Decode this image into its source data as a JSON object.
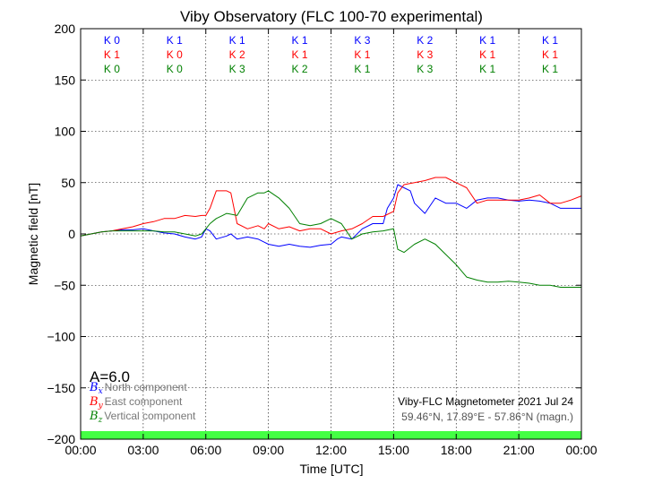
{
  "chart_data": {
    "type": "line",
    "title": "Viby Observatory (FLC 100-70 experimental)",
    "xlabel": "Time [UTC]",
    "ylabel": "Magnetic field [nT]",
    "xlim": [
      0,
      24
    ],
    "ylim": [
      -200,
      200
    ],
    "grid": true,
    "x_ticks": [
      {
        "value": 0,
        "label": "00:00"
      },
      {
        "value": 3,
        "label": "03:00"
      },
      {
        "value": 6,
        "label": "06:00"
      },
      {
        "value": 9,
        "label": "09:00"
      },
      {
        "value": 12,
        "label": "12:00"
      },
      {
        "value": 15,
        "label": "15:00"
      },
      {
        "value": 18,
        "label": "18:00"
      },
      {
        "value": 21,
        "label": "21:00"
      },
      {
        "value": 24,
        "label": "00:00"
      }
    ],
    "y_ticks": [
      {
        "value": -200,
        "label": "−200"
      },
      {
        "value": -150,
        "label": "−150"
      },
      {
        "value": -100,
        "label": "−100"
      },
      {
        "value": -50,
        "label": "−50"
      },
      {
        "value": 0,
        "label": "0"
      },
      {
        "value": 50,
        "label": "50"
      },
      {
        "value": 100,
        "label": "100"
      },
      {
        "value": 150,
        "label": "150"
      },
      {
        "value": 200,
        "label": "200"
      }
    ],
    "k_index": {
      "interval_centers": [
        1.5,
        4.5,
        7.5,
        10.5,
        13.5,
        16.5,
        19.5,
        22.5
      ],
      "rows": [
        {
          "component": "north",
          "color": "#0000ff",
          "labels": [
            "K 0",
            "K 1",
            "K 1",
            "K 1",
            "K 3",
            "K 2",
            "K 1",
            "K 1"
          ]
        },
        {
          "component": "east",
          "color": "#ff0000",
          "labels": [
            "K 1",
            "K 0",
            "K 2",
            "K 1",
            "K 1",
            "K 3",
            "K 1",
            "K 1"
          ]
        },
        {
          "component": "vertical",
          "color": "#008000",
          "labels": [
            "K 0",
            "K 0",
            "K 3",
            "K 2",
            "K 1",
            "K 3",
            "K 1",
            "K 1"
          ]
        }
      ]
    },
    "a_index": "A=6.0",
    "station_info": {
      "line1": "Viby-FLC Magnetometer 2021 Jul 24",
      "line2": "59.46°N, 17.89°E - 57.86°N (magn.)"
    },
    "legend": {
      "placement": "bottom-left",
      "entries": [
        {
          "symbol": "B",
          "sub": "x",
          "label": "North component",
          "color": "#0000ff"
        },
        {
          "symbol": "B",
          "sub": "y",
          "label": "East component",
          "color": "#ff0000"
        },
        {
          "symbol": "B",
          "sub": "z",
          "label": "Vertical component",
          "color": "#008000"
        }
      ]
    },
    "activity_bar_color": "#44ff44",
    "series": [
      {
        "name": "North component",
        "color": "#0000ff",
        "x": [
          0,
          0.5,
          1,
          1.5,
          2,
          2.5,
          3,
          3.5,
          4,
          4.5,
          5,
          5.5,
          5.8,
          6,
          6.2,
          6.5,
          7,
          7.2,
          7.5,
          8,
          8.5,
          8.8,
          9,
          9.5,
          10,
          10.5,
          11,
          11.5,
          12,
          12.3,
          12.5,
          13,
          13.5,
          14,
          14.5,
          14.7,
          15,
          15.2,
          15.5,
          15.8,
          16,
          16.5,
          17,
          17.5,
          18,
          18.5,
          19,
          19.5,
          20,
          20.5,
          21,
          21.5,
          22,
          22.5,
          23,
          23.5,
          24
        ],
        "values": [
          -2,
          0,
          2,
          3,
          4,
          4,
          5,
          3,
          1,
          0,
          -3,
          -5,
          -3,
          5,
          3,
          -5,
          -2,
          0,
          -5,
          -3,
          -5,
          -8,
          -10,
          -12,
          -10,
          -12,
          -13,
          -11,
          -10,
          -5,
          -3,
          -5,
          5,
          10,
          10,
          25,
          35,
          48,
          45,
          42,
          30,
          20,
          35,
          30,
          30,
          25,
          33,
          35,
          35,
          33,
          32,
          33,
          32,
          30,
          25,
          25,
          25
        ]
      },
      {
        "name": "East component",
        "color": "#ff0000",
        "x": [
          0,
          0.5,
          1,
          1.5,
          2,
          2.5,
          3,
          3.5,
          4,
          4.5,
          5,
          5.5,
          5.8,
          6,
          6.2,
          6.5,
          6.8,
          7,
          7.2,
          7.4,
          7.5,
          8,
          8.5,
          8.8,
          9,
          9.5,
          10,
          10.5,
          11,
          11.5,
          12,
          12.5,
          13,
          13.5,
          14,
          14.5,
          15,
          15.2,
          15.5,
          16,
          16.5,
          17,
          17.5,
          18,
          18.5,
          19,
          19.5,
          20,
          20.5,
          21,
          21.5,
          22,
          22.5,
          23,
          23.5,
          24
        ],
        "values": [
          -2,
          0,
          2,
          3,
          5,
          7,
          10,
          12,
          15,
          15,
          18,
          17,
          18,
          18,
          25,
          42,
          42,
          42,
          40,
          20,
          10,
          5,
          8,
          5,
          10,
          5,
          7,
          3,
          5,
          5,
          0,
          3,
          5,
          10,
          17,
          17,
          22,
          40,
          48,
          50,
          52,
          55,
          55,
          50,
          45,
          30,
          33,
          33,
          33,
          33,
          35,
          38,
          30,
          30,
          33,
          37
        ]
      },
      {
        "name": "Vertical component",
        "color": "#008000",
        "x": [
          0,
          0.5,
          1,
          1.5,
          2,
          2.5,
          3,
          3.5,
          4,
          4.5,
          5,
          5.5,
          5.8,
          6,
          6.2,
          6.5,
          6.8,
          7,
          7.5,
          8,
          8.5,
          8.8,
          9,
          9.5,
          10,
          10.5,
          11,
          11.5,
          12,
          12.5,
          13,
          13.5,
          14,
          14.5,
          15,
          15.2,
          15.5,
          16,
          16.5,
          17,
          17.5,
          18,
          18.5,
          19,
          19.5,
          20,
          20.5,
          21,
          21.5,
          22,
          22.5,
          23,
          23.5,
          24
        ],
        "values": [
          -2,
          0,
          2,
          3,
          3,
          3,
          3,
          3,
          2,
          2,
          0,
          -2,
          0,
          5,
          10,
          15,
          18,
          20,
          18,
          35,
          40,
          40,
          42,
          35,
          25,
          10,
          8,
          10,
          15,
          10,
          -5,
          0,
          2,
          3,
          5,
          -15,
          -18,
          -10,
          -5,
          -10,
          -20,
          -30,
          -42,
          -45,
          -47,
          -47,
          -46,
          -47,
          -48,
          -50,
          -50,
          -52,
          -52,
          -52
        ]
      }
    ]
  }
}
